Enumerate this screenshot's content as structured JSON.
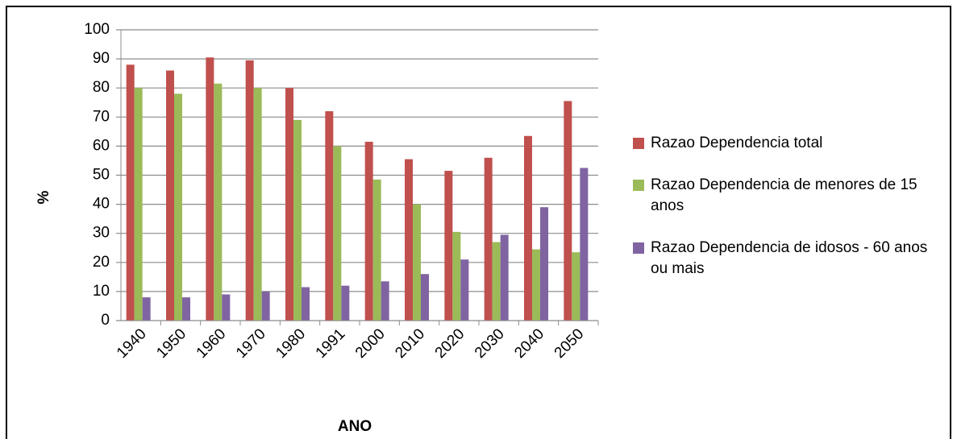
{
  "chart_data": {
    "type": "bar",
    "categories": [
      "1940",
      "1950",
      "1960",
      "1970",
      "1980",
      "1991",
      "2000",
      "2010",
      "2020",
      "2030",
      "2040",
      "2050"
    ],
    "series": [
      {
        "name": "Razao Dependencia total",
        "color": "#c0504d",
        "values": [
          88,
          86,
          90.5,
          89.5,
          80,
          72,
          61.5,
          55.5,
          51.5,
          56,
          63.5,
          75.5
        ]
      },
      {
        "name": "Razao Dependencia de menores de 15 anos",
        "color": "#9bbb59",
        "values": [
          80,
          78,
          81.5,
          80,
          69,
          60,
          48.5,
          40,
          30.5,
          27,
          24.5,
          23.5
        ]
      },
      {
        "name": "Razao Dependencia de idosos - 60 anos ou mais",
        "color": "#8064a2",
        "values": [
          8,
          8,
          9,
          10,
          11.5,
          12,
          13.5,
          16,
          21,
          29.5,
          39,
          52.5
        ]
      }
    ],
    "xlabel": "ANO",
    "ylabel": "%",
    "ylim": [
      0,
      100
    ],
    "yticks": [
      0,
      10,
      20,
      30,
      40,
      50,
      60,
      70,
      80,
      90,
      100
    ],
    "grid": true
  }
}
